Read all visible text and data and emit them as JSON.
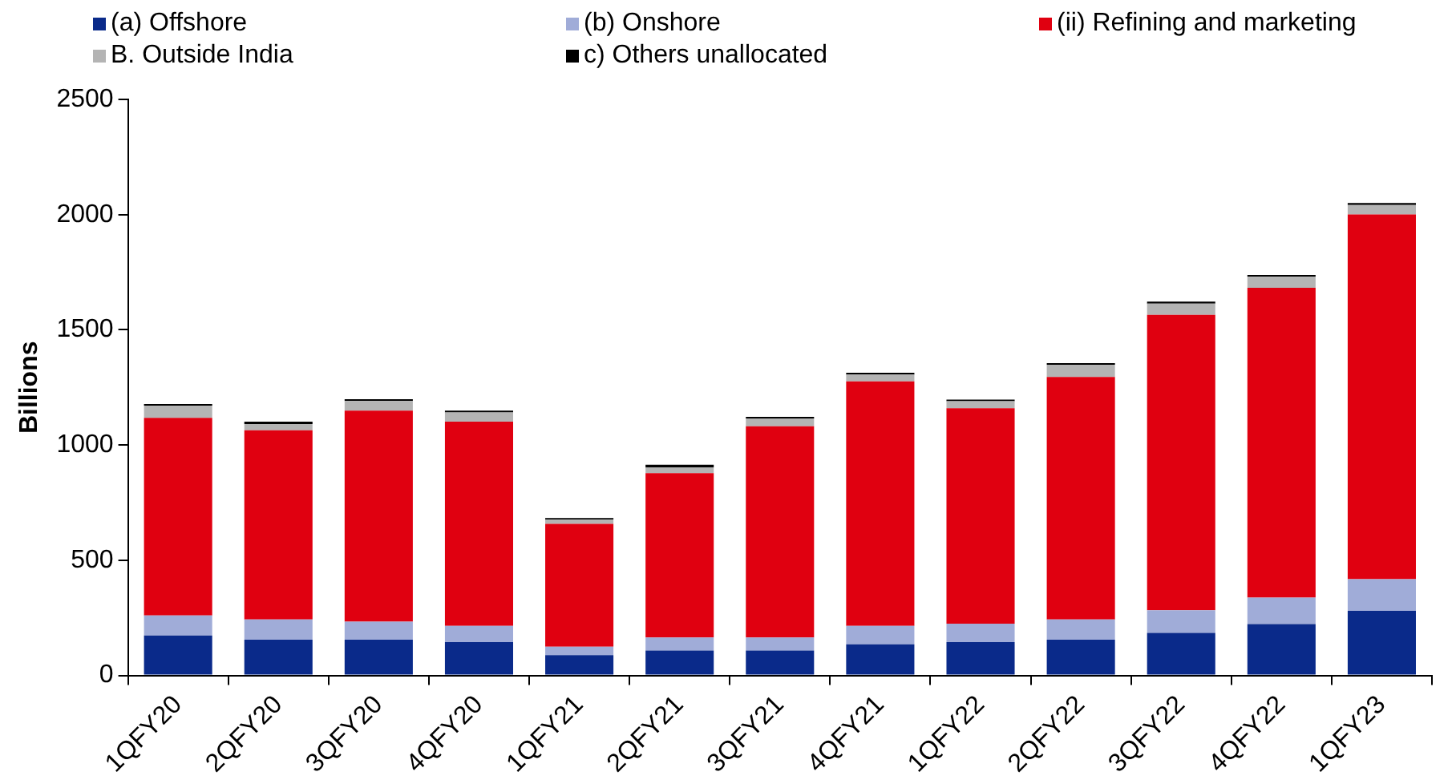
{
  "chart_data": {
    "type": "bar",
    "stacked": true,
    "ylabel": "Billions",
    "categories": [
      "1QFY20",
      "2QFY20",
      "3QFY20",
      "4QFY20",
      "1QFY21",
      "2QFY21",
      "3QFY21",
      "4QFY21",
      "1QFY22",
      "2QFY22",
      "3QFY22",
      "4QFY22",
      "1QFY23"
    ],
    "series": [
      {
        "name": "(a) Offshore",
        "color": "#0a2a8a",
        "values": [
          173,
          155,
          155,
          145,
          88,
          108,
          108,
          135,
          145,
          155,
          185,
          223,
          280
        ]
      },
      {
        "name": "(b) Onshore",
        "color": "#a0acd8",
        "values": [
          87,
          88,
          78,
          70,
          37,
          57,
          57,
          80,
          80,
          88,
          98,
          115,
          138
        ]
      },
      {
        "name": "(ii) Refining and marketing",
        "color": "#e00010",
        "values": [
          858,
          821,
          916,
          886,
          533,
          713,
          916,
          1061,
          935,
          1052,
          1282,
          1344,
          1583
        ]
      },
      {
        "name": "B. Outside India",
        "color": "#b4b4b4",
        "values": [
          53,
          27,
          42,
          40,
          18,
          25,
          34,
          30,
          30,
          53,
          49,
          48,
          41
        ]
      },
      {
        "name": "c) Others unallocated",
        "color": "#000000",
        "values": [
          7,
          10,
          8,
          8,
          7,
          11,
          7,
          8,
          7,
          7,
          8,
          8,
          8
        ]
      }
    ],
    "ylim": [
      0,
      2500
    ],
    "yticks": [
      0,
      500,
      1000,
      1500,
      2000,
      2500
    ],
    "grid": false,
    "legend": "top"
  }
}
